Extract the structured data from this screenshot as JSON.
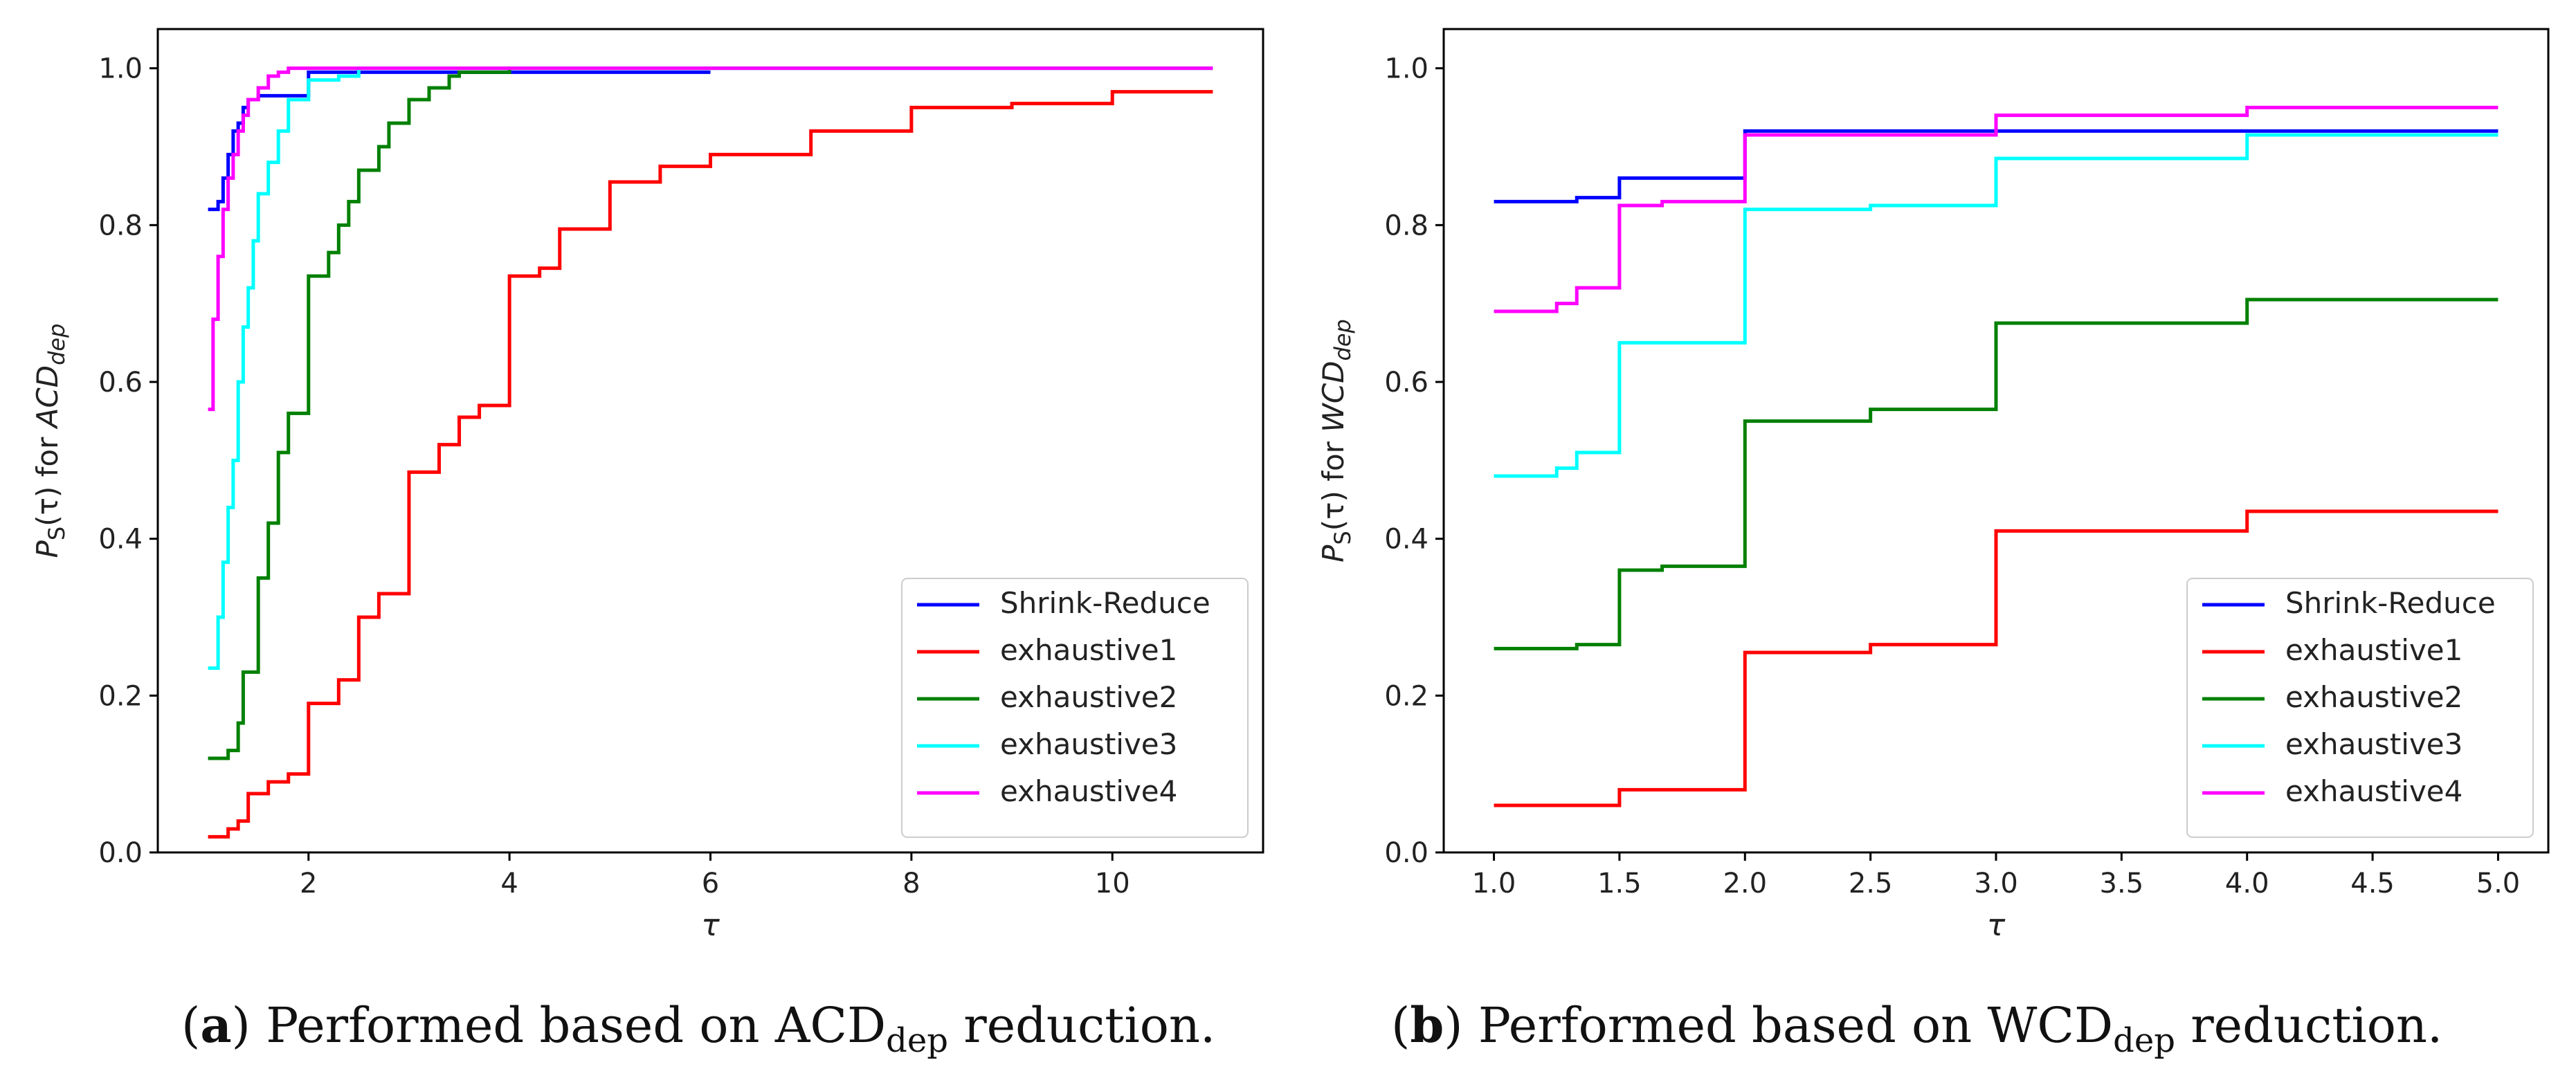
{
  "chart_data": [
    {
      "type": "line",
      "step": true,
      "title": "",
      "xlabel": "τ",
      "ylabel": {
        "prefix": "P",
        "sub": "S",
        "mid": "(τ) for ",
        "main": "ACD",
        "main_sub": "dep"
      },
      "xlim": [
        0.5,
        11.5
      ],
      "ylim": [
        0.0,
        1.05
      ],
      "xticks": [
        2,
        4,
        6,
        8,
        10
      ],
      "xtick_labels": [
        "2",
        "4",
        "6",
        "8",
        "10"
      ],
      "yticks": [
        0.0,
        0.2,
        0.4,
        0.6,
        0.8,
        1.0
      ],
      "ytick_labels": [
        "0.0",
        "0.2",
        "0.4",
        "0.6",
        "0.8",
        "1.0"
      ],
      "legend_position": "bottom-right",
      "series": [
        {
          "name": "Shrink-Reduce",
          "color": "#0000ff",
          "x": [
            1.0,
            1.1,
            1.15,
            1.2,
            1.25,
            1.3,
            1.35,
            1.4,
            1.5,
            2.0,
            2.5,
            3.0,
            3.5,
            4.0,
            6.0
          ],
          "y": [
            0.82,
            0.83,
            0.86,
            0.89,
            0.92,
            0.93,
            0.95,
            0.96,
            0.965,
            0.995,
            0.995,
            0.995,
            0.995,
            0.995,
            0.995
          ]
        },
        {
          "name": "exhaustive1",
          "color": "#ff0000",
          "x": [
            1.0,
            1.2,
            1.3,
            1.4,
            1.6,
            1.8,
            1.9,
            2.0,
            2.3,
            2.5,
            2.7,
            3.0,
            3.3,
            3.5,
            3.7,
            4.0,
            4.3,
            4.5,
            5.0,
            5.5,
            6.0,
            7.0,
            8.0,
            9.0,
            10.0,
            11.0
          ],
          "y": [
            0.02,
            0.03,
            0.04,
            0.075,
            0.09,
            0.1,
            0.1,
            0.19,
            0.22,
            0.3,
            0.33,
            0.485,
            0.52,
            0.555,
            0.57,
            0.735,
            0.745,
            0.795,
            0.855,
            0.875,
            0.89,
            0.92,
            0.95,
            0.955,
            0.97,
            0.97
          ]
        },
        {
          "name": "exhaustive2",
          "color": "#008000",
          "x": [
            1.0,
            1.2,
            1.3,
            1.35,
            1.5,
            1.6,
            1.7,
            1.8,
            2.0,
            2.2,
            2.3,
            2.4,
            2.5,
            2.7,
            2.8,
            3.0,
            3.2,
            3.4,
            3.5,
            4.0,
            11.0
          ],
          "y": [
            0.12,
            0.13,
            0.165,
            0.23,
            0.35,
            0.42,
            0.51,
            0.56,
            0.735,
            0.765,
            0.8,
            0.83,
            0.87,
            0.9,
            0.93,
            0.96,
            0.975,
            0.99,
            0.995,
            1.0,
            1.0
          ]
        },
        {
          "name": "exhaustive3",
          "color": "#00ffff",
          "x": [
            1.0,
            1.1,
            1.15,
            1.2,
            1.25,
            1.3,
            1.35,
            1.4,
            1.45,
            1.5,
            1.6,
            1.7,
            1.8,
            2.0,
            2.3,
            2.5,
            11.0
          ],
          "y": [
            0.235,
            0.3,
            0.37,
            0.44,
            0.5,
            0.6,
            0.67,
            0.72,
            0.78,
            0.84,
            0.88,
            0.92,
            0.96,
            0.985,
            0.99,
            1.0,
            1.0
          ]
        },
        {
          "name": "exhaustive4",
          "color": "#ff00ff",
          "x": [
            1.0,
            1.05,
            1.1,
            1.15,
            1.2,
            1.25,
            1.3,
            1.35,
            1.4,
            1.5,
            1.6,
            1.7,
            1.8,
            2.0,
            11.0
          ],
          "y": [
            0.565,
            0.68,
            0.76,
            0.82,
            0.86,
            0.89,
            0.92,
            0.94,
            0.96,
            0.975,
            0.99,
            0.995,
            1.0,
            1.0,
            1.0
          ]
        }
      ]
    },
    {
      "type": "line",
      "step": true,
      "title": "",
      "xlabel": "τ",
      "ylabel": {
        "prefix": "P",
        "sub": "S",
        "mid": "(τ) for ",
        "main": "WCD",
        "main_sub": "dep"
      },
      "xlim": [
        0.8,
        5.2
      ],
      "ylim": [
        0.0,
        1.05
      ],
      "xticks": [
        1.0,
        1.5,
        2.0,
        2.5,
        3.0,
        3.5,
        4.0,
        4.5,
        5.0
      ],
      "xtick_labels": [
        "1.0",
        "1.5",
        "2.0",
        "2.5",
        "3.0",
        "3.5",
        "4.0",
        "4.5",
        "5.0"
      ],
      "yticks": [
        0.0,
        0.2,
        0.4,
        0.6,
        0.8,
        1.0
      ],
      "ytick_labels": [
        "0.0",
        "0.2",
        "0.4",
        "0.6",
        "0.8",
        "1.0"
      ],
      "legend_position": "bottom-right",
      "series": [
        {
          "name": "Shrink-Reduce",
          "color": "#0000ff",
          "x": [
            1.0,
            1.33,
            1.5,
            2.0,
            5.0
          ],
          "y": [
            0.83,
            0.835,
            0.86,
            0.92,
            0.92
          ]
        },
        {
          "name": "exhaustive1",
          "color": "#ff0000",
          "x": [
            1.0,
            1.5,
            2.0,
            2.5,
            3.0,
            4.0,
            5.0
          ],
          "y": [
            0.06,
            0.08,
            0.255,
            0.265,
            0.41,
            0.435,
            0.435
          ]
        },
        {
          "name": "exhaustive2",
          "color": "#008000",
          "x": [
            1.0,
            1.33,
            1.5,
            1.67,
            2.0,
            2.5,
            3.0,
            4.0,
            5.0
          ],
          "y": [
            0.26,
            0.265,
            0.36,
            0.365,
            0.55,
            0.565,
            0.675,
            0.705,
            0.705
          ]
        },
        {
          "name": "exhaustive3",
          "color": "#00ffff",
          "x": [
            1.0,
            1.25,
            1.33,
            1.5,
            2.0,
            2.5,
            3.0,
            4.0,
            5.0
          ],
          "y": [
            0.48,
            0.49,
            0.51,
            0.65,
            0.82,
            0.825,
            0.885,
            0.915,
            0.915
          ]
        },
        {
          "name": "exhaustive4",
          "color": "#ff00ff",
          "x": [
            1.0,
            1.25,
            1.33,
            1.5,
            1.67,
            2.0,
            3.0,
            4.0,
            5.0
          ],
          "y": [
            0.69,
            0.7,
            0.72,
            0.825,
            0.83,
            0.915,
            0.94,
            0.95,
            0.95
          ]
        }
      ]
    }
  ],
  "captions": [
    {
      "label": "a",
      "text_before": " Performed based on ACD",
      "sub": "dep",
      "text_after": " reduction."
    },
    {
      "label": "b",
      "text_before": " Performed based on WCD",
      "sub": "dep",
      "text_after": " reduction."
    }
  ]
}
